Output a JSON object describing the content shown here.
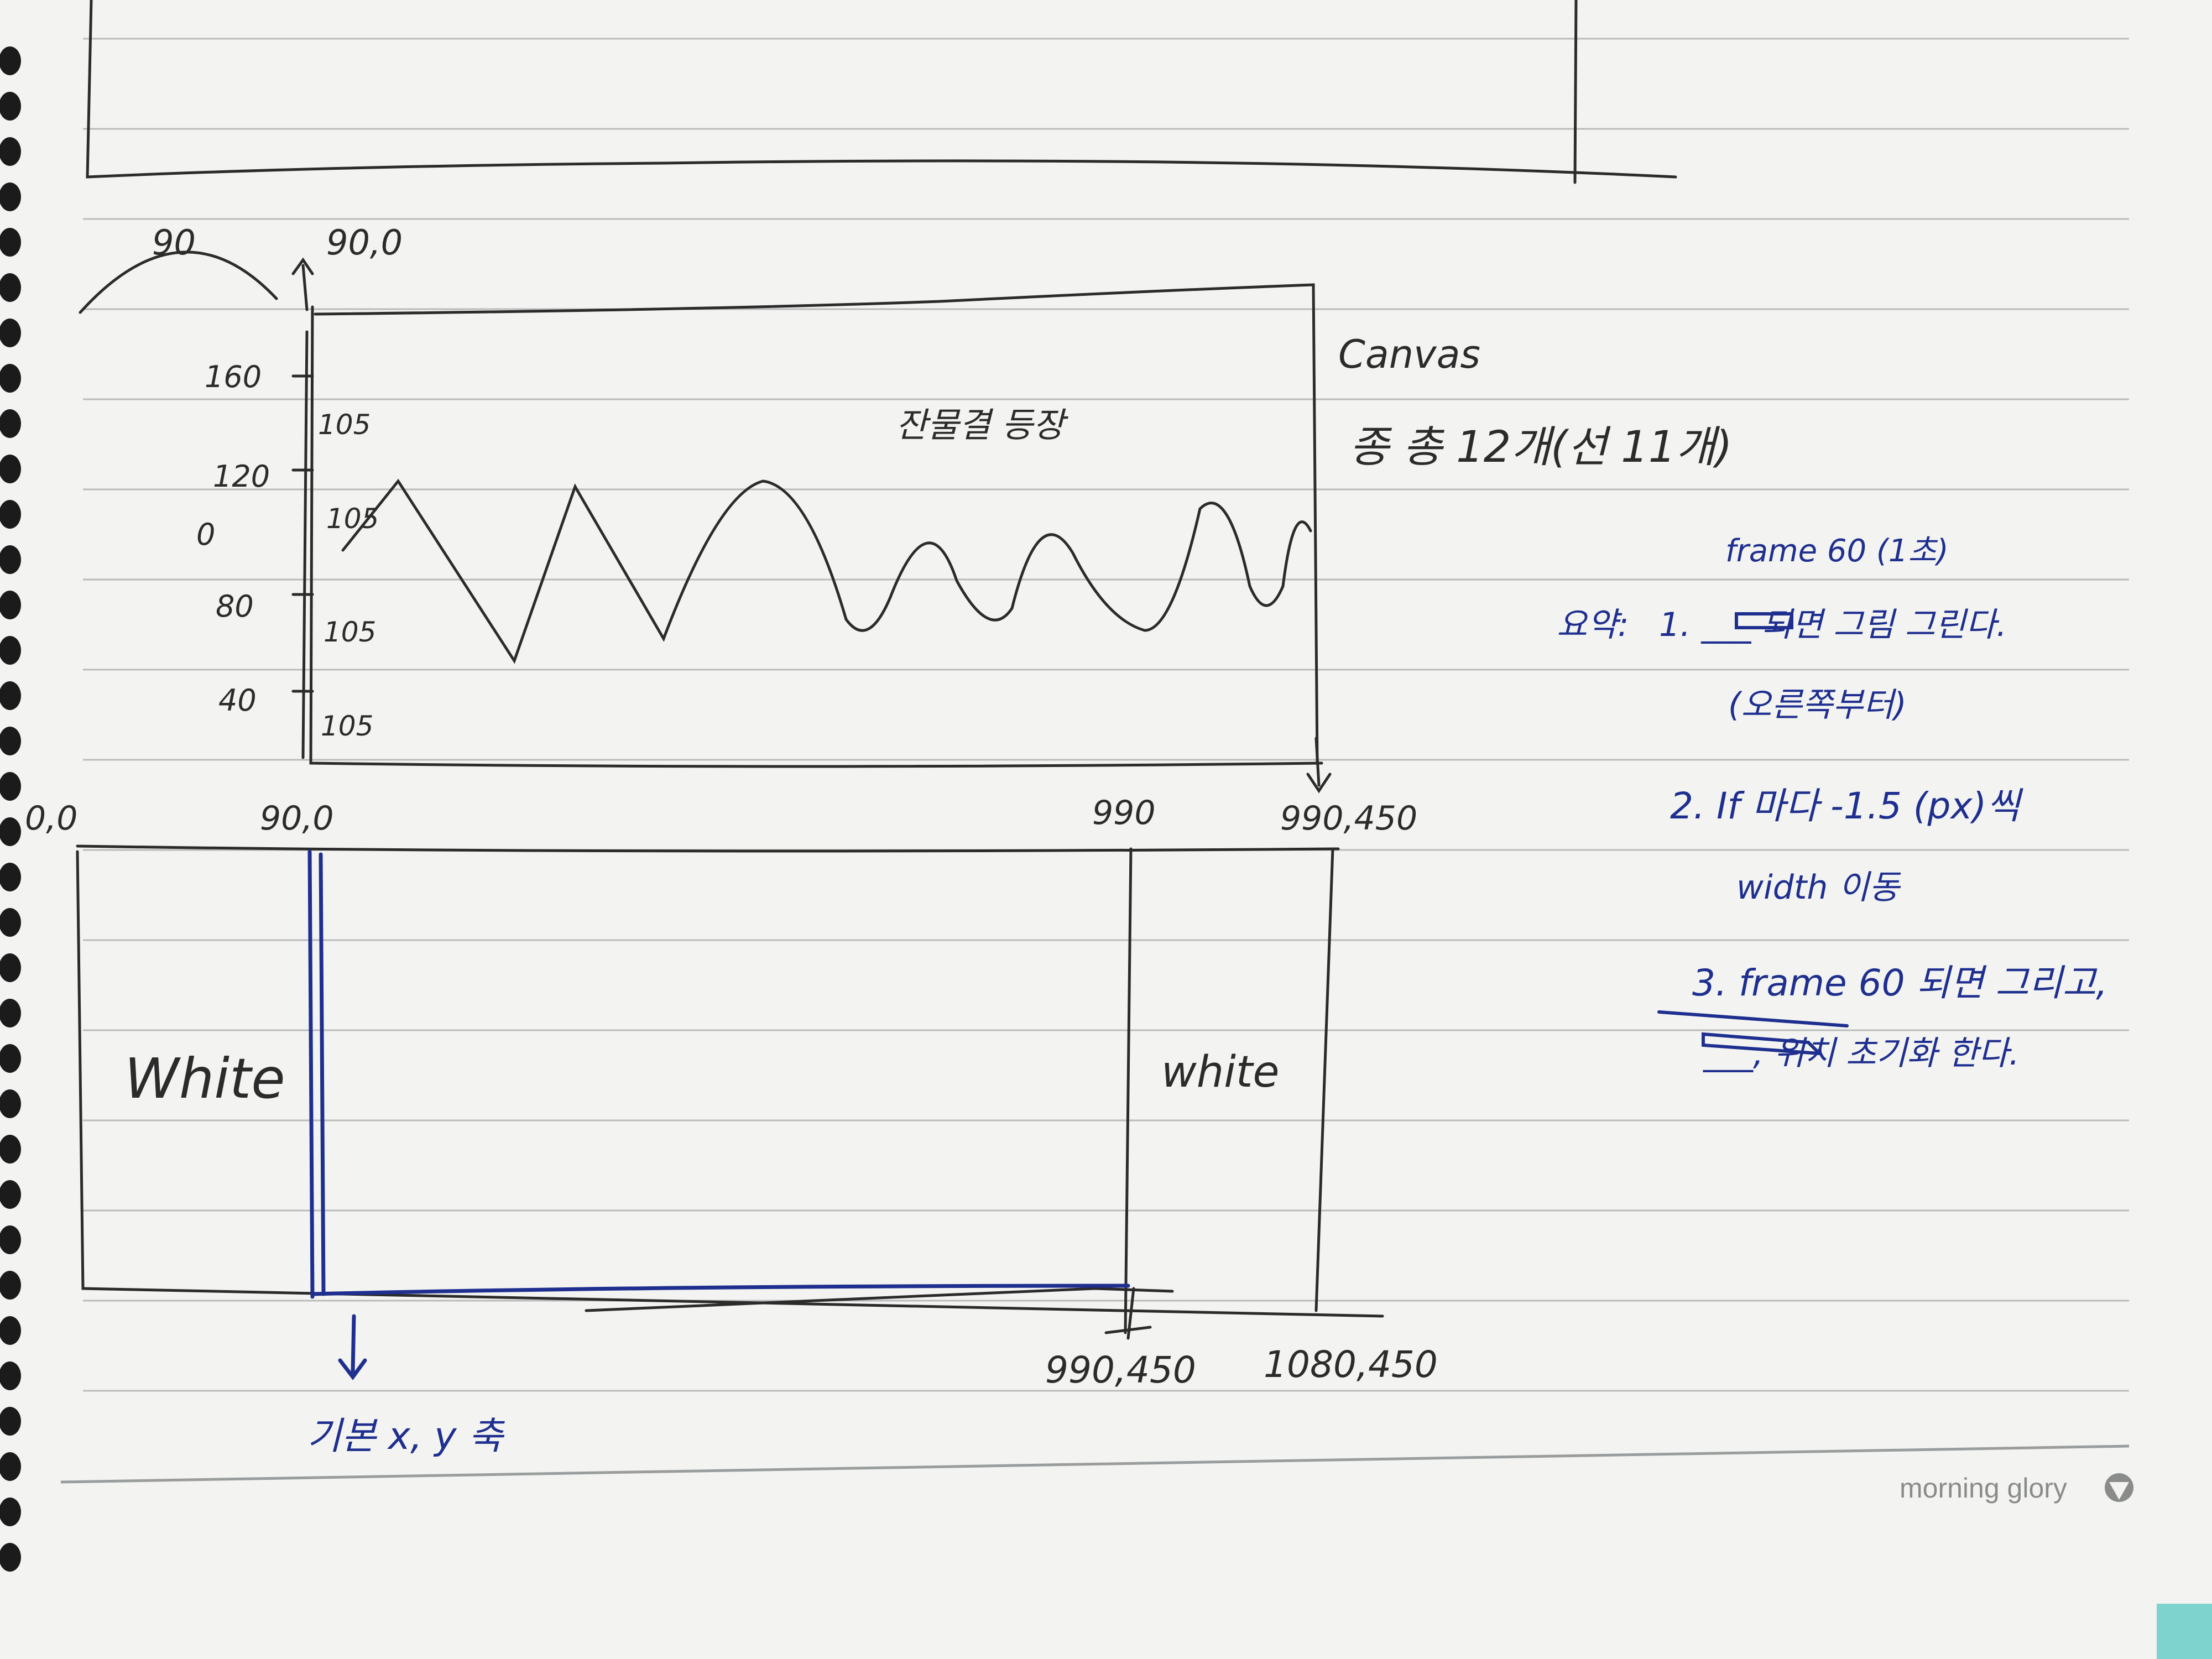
{
  "colors": {
    "paper": "#f3f4f1",
    "ruled_line": "#b9bcbc",
    "pencil": "#2b2b2b",
    "blue_ink": "#1f2f8f",
    "teal_edge": "#7fd3cf",
    "spiral_hole": "#1b1b1b"
  },
  "notebook": {
    "brand": "morning glory",
    "brand_icon": "morning-glory-logo-icon"
  },
  "wave_sketch": {
    "arc_label": "90",
    "origin_label": "90,0",
    "canvas_label": "Canvas",
    "wave_count_label": "종 총 12개(선 11개)",
    "wave_title": "잔물결 등장",
    "axis_labels": [
      "160",
      "120",
      "0",
      "80",
      "40"
    ],
    "gap_labels": [
      "105",
      "105",
      "105",
      "105"
    ]
  },
  "bottom_sketch": {
    "coord_top_left": "0,0",
    "coord_top_mid": "90,0",
    "coord_top_990": "990",
    "coord_top_right": "990,450",
    "label_left": "White",
    "label_right": "white",
    "coord_bottom_990": "990,450",
    "coord_bottom_right": "1080,450",
    "blue_axis_note": "기본 x, y 축"
  },
  "notes": {
    "frame_title": "frame 60 (1초)",
    "prefix": "요약:",
    "line1": "1. ___ 되면 그림 그린다.",
    "line1b": "(오른쪽부터)",
    "line2": "2. If 마다 -1.5 (px)씩",
    "line2b": "width 이동",
    "line3": "3. frame 60 되면 그리고,",
    "line3b": "___, 위치 초기화 한다."
  }
}
